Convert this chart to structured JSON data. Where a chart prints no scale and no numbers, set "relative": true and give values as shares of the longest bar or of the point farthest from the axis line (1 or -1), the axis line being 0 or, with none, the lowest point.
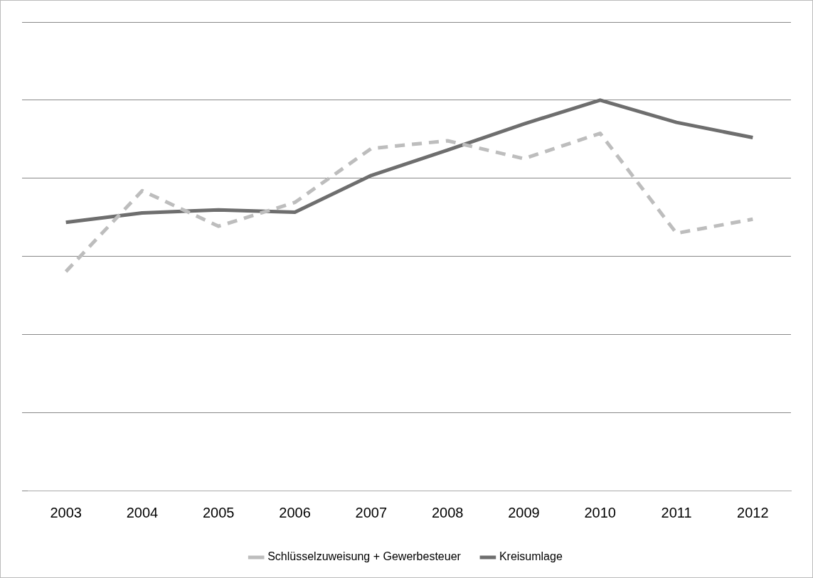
{
  "chart_data": {
    "type": "line",
    "relative": true,
    "categories": [
      "2003",
      "2004",
      "2005",
      "2006",
      "2007",
      "2008",
      "2009",
      "2010",
      "2011",
      "2012"
    ],
    "series": [
      {
        "name": "Schlüsselzuweisung + Gewerbesteuer",
        "color": "#bdbdbd",
        "line_style": "dashed",
        "values": [
          0.561,
          0.768,
          0.677,
          0.738,
          0.876,
          0.896,
          0.85,
          0.915,
          0.659,
          0.695
        ]
      },
      {
        "name": "Kreisumlage",
        "color": "#6e6e6e",
        "line_style": "solid",
        "values": [
          0.687,
          0.711,
          0.719,
          0.713,
          0.807,
          0.872,
          0.939,
          1,
          0.943,
          0.904
        ]
      }
    ],
    "grid": "y",
    "legend": "bottom",
    "marker": "none"
  }
}
